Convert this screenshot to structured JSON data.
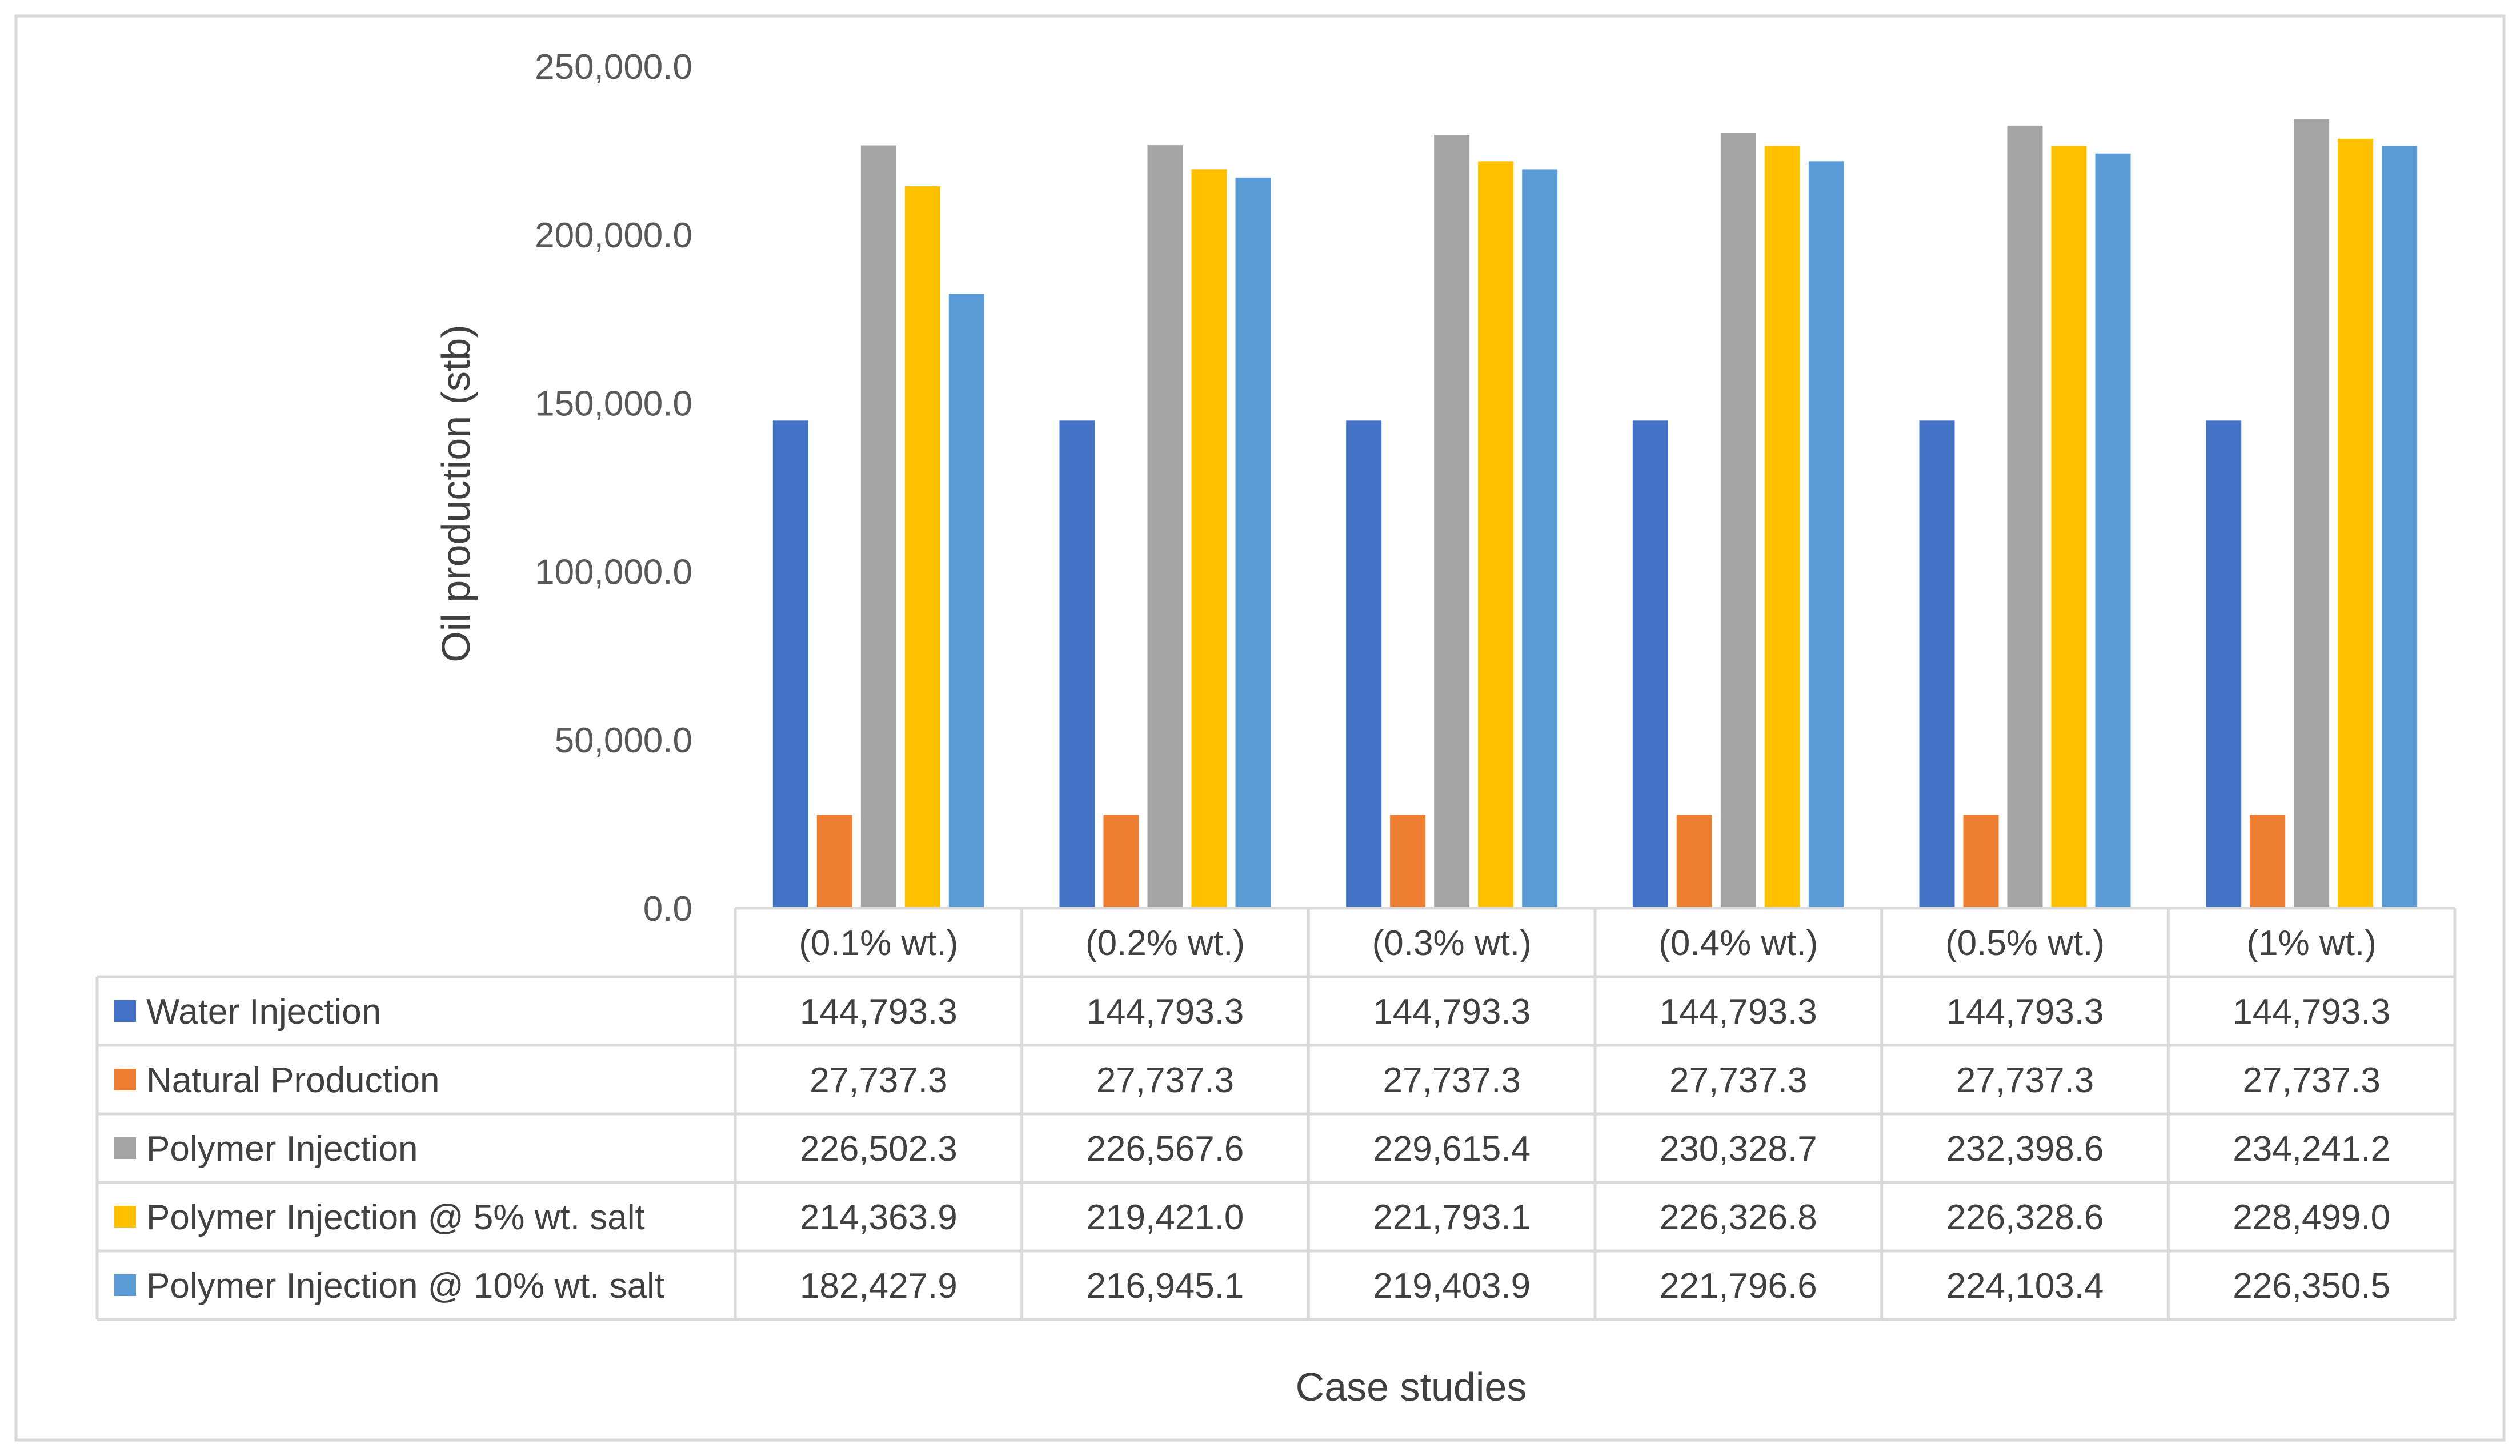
{
  "chart_data": {
    "type": "bar",
    "title": "",
    "xlabel": "Case studies",
    "ylabel": "Oil production (stb)",
    "ylim": [
      0,
      250000
    ],
    "yticks": [
      "0.0",
      "50,000.0",
      "100,000.0",
      "150,000.0",
      "200,000.0",
      "250,000.0"
    ],
    "ytick_values": [
      0,
      50000,
      100000,
      150000,
      200000,
      250000
    ],
    "grid": false,
    "legend": "data-table",
    "categories": [
      "(0.1% wt.)",
      "(0.2% wt.)",
      "(0.3% wt.)",
      "(0.4% wt.)",
      "(0.5% wt.)",
      "(1% wt.)"
    ],
    "series": [
      {
        "name": "Water Injection",
        "color": "#4472C4",
        "values": [
          144793.3,
          144793.3,
          144793.3,
          144793.3,
          144793.3,
          144793.3
        ],
        "labels": [
          "144,793.3",
          "144,793.3",
          "144,793.3",
          "144,793.3",
          "144,793.3",
          "144,793.3"
        ]
      },
      {
        "name": "Natural Production",
        "color": "#ED7D31",
        "values": [
          27737.3,
          27737.3,
          27737.3,
          27737.3,
          27737.3,
          27737.3
        ],
        "labels": [
          "27,737.3",
          "27,737.3",
          "27,737.3",
          "27,737.3",
          "27,737.3",
          "27,737.3"
        ]
      },
      {
        "name": "Polymer Injection",
        "color": "#A5A5A5",
        "values": [
          226502.3,
          226567.6,
          229615.4,
          230328.7,
          232398.6,
          234241.2
        ],
        "labels": [
          "226,502.3",
          "226,567.6",
          "229,615.4",
          "230,328.7",
          "232,398.6",
          "234,241.2"
        ]
      },
      {
        "name": "Polymer Injection @ 5% wt. salt",
        "color": "#FFC000",
        "values": [
          214363.9,
          219421.0,
          221793.1,
          226326.8,
          226328.6,
          228499.0
        ],
        "labels": [
          "214,363.9",
          "219,421.0",
          "221,793.1",
          "226,326.8",
          "226,328.6",
          "228,499.0"
        ]
      },
      {
        "name": "Polymer Injection @ 10% wt. salt",
        "color": "#5B9BD5",
        "values": [
          182427.9,
          216945.1,
          219403.9,
          221796.6,
          224103.4,
          226350.5
        ],
        "labels": [
          "182,427.9",
          "216,945.1",
          "219,403.9",
          "221,796.6",
          "224,103.4",
          "226,350.5"
        ]
      }
    ]
  }
}
